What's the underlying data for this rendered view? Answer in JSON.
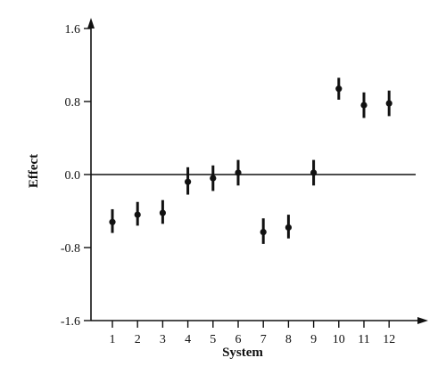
{
  "chart_data": {
    "type": "scatter",
    "title": "",
    "xlabel": "System",
    "ylabel": "Effect",
    "x_categories": [
      "1",
      "2",
      "3",
      "4",
      "5",
      "6",
      "7",
      "8",
      "9",
      "10",
      "11",
      "12"
    ],
    "ylim": [
      -1.6,
      1.6
    ],
    "yticks": [
      1.6,
      0.8,
      0.0,
      -0.8,
      -1.6
    ],
    "ytick_labels": [
      "1.6",
      "0.8",
      "0.0",
      "-0.8",
      "-1.6"
    ],
    "series": [
      {
        "x": [
          "1",
          "2",
          "3",
          "4",
          "5",
          "6",
          "7",
          "8",
          "9",
          "10",
          "11",
          "12"
        ],
        "y": [
          -0.52,
          -0.44,
          -0.42,
          -0.08,
          -0.04,
          0.02,
          -0.63,
          -0.58,
          0.02,
          0.94,
          0.76,
          0.78
        ],
        "error_low": [
          -0.64,
          -0.56,
          -0.54,
          -0.22,
          -0.18,
          -0.12,
          -0.76,
          -0.7,
          -0.12,
          0.82,
          0.62,
          0.64
        ],
        "error_high": [
          -0.38,
          -0.3,
          -0.28,
          0.08,
          0.1,
          0.16,
          -0.48,
          -0.44,
          0.16,
          1.06,
          0.9,
          0.92
        ]
      }
    ],
    "zero_line": true,
    "grid": false,
    "colors": {
      "ink": "#111111",
      "background": "#ffffff"
    }
  }
}
